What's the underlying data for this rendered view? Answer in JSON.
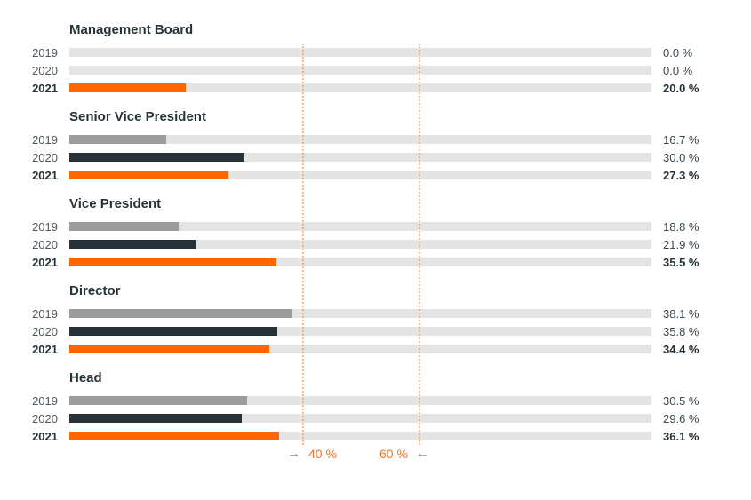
{
  "chart_data": {
    "type": "bar",
    "orientation": "horizontal",
    "unit": "%",
    "xlim": [
      0,
      100
    ],
    "grid": "dotted vertical target lines at 40 and 60",
    "legend_position": "none",
    "series_years": [
      "2019",
      "2020",
      "2021"
    ],
    "groups": [
      {
        "label": "Management Board",
        "rows": [
          {
            "year": "2019",
            "value": 0.0,
            "display": "0.0 %"
          },
          {
            "year": "2020",
            "value": 0.0,
            "display": "0.0 %"
          },
          {
            "year": "2021",
            "value": 20.0,
            "display": "20.0 %"
          }
        ]
      },
      {
        "label": "Senior Vice President",
        "rows": [
          {
            "year": "2019",
            "value": 16.7,
            "display": "16.7 %"
          },
          {
            "year": "2020",
            "value": 30.0,
            "display": "30.0 %"
          },
          {
            "year": "2021",
            "value": 27.3,
            "display": "27.3 %"
          }
        ]
      },
      {
        "label": "Vice President",
        "rows": [
          {
            "year": "2019",
            "value": 18.8,
            "display": "18.8 %"
          },
          {
            "year": "2020",
            "value": 21.9,
            "display": "21.9 %"
          },
          {
            "year": "2021",
            "value": 35.5,
            "display": "35.5 %"
          }
        ]
      },
      {
        "label": "Director",
        "rows": [
          {
            "year": "2019",
            "value": 38.1,
            "display": "38.1 %"
          },
          {
            "year": "2020",
            "value": 35.8,
            "display": "35.8 %"
          },
          {
            "year": "2021",
            "value": 34.4,
            "display": "34.4 %"
          }
        ]
      },
      {
        "label": "Head",
        "rows": [
          {
            "year": "2019",
            "value": 30.5,
            "display": "30.5 %"
          },
          {
            "year": "2020",
            "value": 29.6,
            "display": "29.6 %"
          },
          {
            "year": "2021",
            "value": 36.1,
            "display": "36.1 %"
          }
        ]
      }
    ],
    "targets": [
      {
        "value": 40,
        "label": "40 %",
        "arrow": "→",
        "arrow_icon": "right-arrow-icon",
        "arrow_side": "left"
      },
      {
        "value": 60,
        "label": "60 %",
        "arrow": "←",
        "arrow_icon": "left-arrow-icon",
        "arrow_side": "right"
      }
    ]
  },
  "colors": {
    "bar_2019": "#9c9c9c",
    "bar_2020": "#263238",
    "bar_2021": "#ff6600",
    "bar_track": "#e4e4e4",
    "text_dark": "#263238",
    "text_regular": "#4e585e",
    "target_orange": "#ee7326",
    "gridline_orange": "rgba(255,102,0,0.45)"
  }
}
